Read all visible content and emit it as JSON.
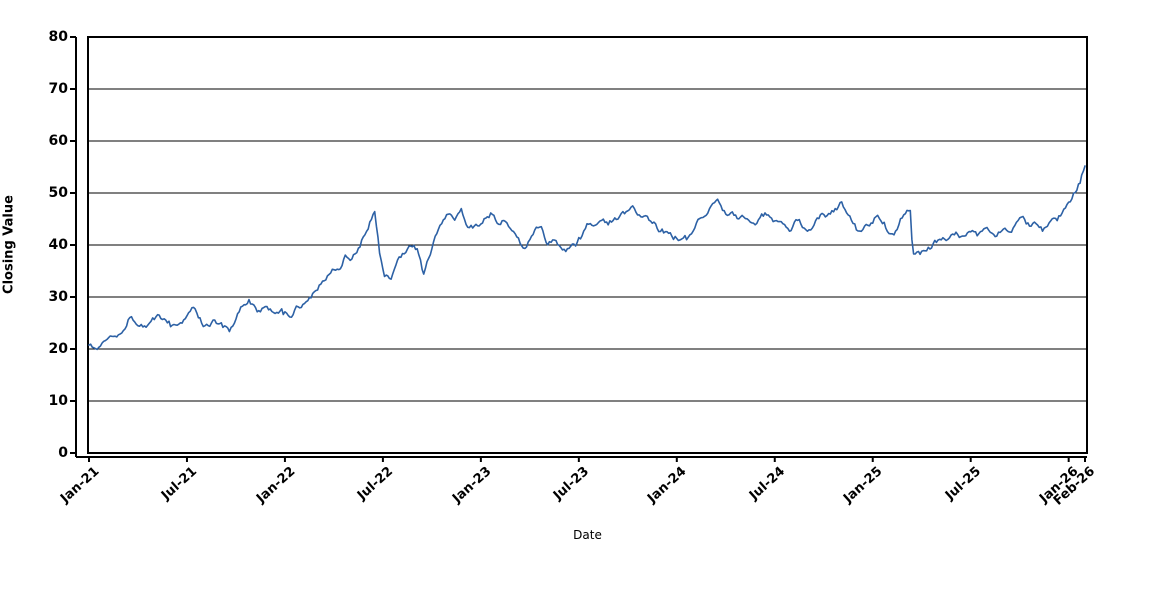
{
  "chart_data": {
    "type": "line",
    "title": "",
    "xlabel": "Date",
    "ylabel": "Closing Value",
    "legend": "none",
    "grid": "horizontal",
    "ylim": [
      0,
      80
    ],
    "y_ticks": [
      0,
      10,
      20,
      30,
      40,
      50,
      60,
      70,
      80
    ],
    "xlim_months": [
      0,
      61
    ],
    "x_ticks": [
      {
        "month": 0,
        "label": "Jan-21"
      },
      {
        "month": 6,
        "label": "Jul-21"
      },
      {
        "month": 12,
        "label": "Jan-22"
      },
      {
        "month": 18,
        "label": "Jul-22"
      },
      {
        "month": 24,
        "label": "Jan-23"
      },
      {
        "month": 30,
        "label": "Jul-23"
      },
      {
        "month": 36,
        "label": "Jan-24"
      },
      {
        "month": 42,
        "label": "Jul-24"
      },
      {
        "month": 48,
        "label": "Jan-25"
      },
      {
        "month": 54,
        "label": "Jul-25"
      },
      {
        "month": 60,
        "label": "Jan-26"
      },
      {
        "month": 61,
        "label": "Feb-26"
      }
    ],
    "colors": {
      "line": "#2d61a5",
      "grid": "#000000",
      "axis": "#000000",
      "border": "#000000",
      "background": "#ffffff",
      "text": "#000000"
    },
    "series": [
      {
        "name": "Closing Value",
        "anchors_month_value": [
          [
            0,
            21.2
          ],
          [
            0.2,
            20.4
          ],
          [
            0.5,
            19.8
          ],
          [
            1,
            22.0
          ],
          [
            1.6,
            23.2
          ],
          [
            2.2,
            24.9
          ],
          [
            2.6,
            26.7
          ],
          [
            3.1,
            25.2
          ],
          [
            3.7,
            25.4
          ],
          [
            4.3,
            25.8
          ],
          [
            5,
            24.6
          ],
          [
            5.6,
            24.9
          ],
          [
            6,
            26.1
          ],
          [
            6.4,
            27.8
          ],
          [
            7,
            24.3
          ],
          [
            7.6,
            25.4
          ],
          [
            8.1,
            24.1
          ],
          [
            8.6,
            23.3
          ],
          [
            9.3,
            27.3
          ],
          [
            9.8,
            29.0
          ],
          [
            10.3,
            27.0
          ],
          [
            10.9,
            27.7
          ],
          [
            11.4,
            25.9
          ],
          [
            11.8,
            27.4
          ],
          [
            12.2,
            26.2
          ],
          [
            12.6,
            27.4
          ],
          [
            13.3,
            29.8
          ],
          [
            14,
            32.2
          ],
          [
            14.7,
            34.8
          ],
          [
            15.2,
            36.0
          ],
          [
            15.7,
            38.0
          ],
          [
            16,
            37.3
          ],
          [
            16.4,
            39.0
          ],
          [
            16.9,
            41.8
          ],
          [
            17.2,
            44.3
          ],
          [
            17.5,
            46.2
          ],
          [
            17.8,
            38.8
          ],
          [
            18.1,
            34.3
          ],
          [
            18.5,
            33.9
          ],
          [
            18.9,
            36.8
          ],
          [
            19.4,
            38.8
          ],
          [
            19.8,
            40.0
          ],
          [
            20.1,
            39.2
          ],
          [
            20.5,
            33.9
          ],
          [
            20.8,
            37.5
          ],
          [
            21.2,
            41.0
          ],
          [
            21.7,
            45.8
          ],
          [
            22,
            46.6
          ],
          [
            22.4,
            45.0
          ],
          [
            22.8,
            46.3
          ],
          [
            23.2,
            42.4
          ],
          [
            23.6,
            43.6
          ],
          [
            24,
            43.0
          ],
          [
            24.4,
            45.4
          ],
          [
            24.7,
            46.3
          ],
          [
            25.1,
            44.3
          ],
          [
            25.5,
            44.8
          ],
          [
            26,
            42.6
          ],
          [
            26.6,
            38.5
          ],
          [
            27.2,
            41.0
          ],
          [
            27.7,
            43.6
          ],
          [
            28.1,
            40.6
          ],
          [
            28.6,
            41.6
          ],
          [
            29,
            39.7
          ],
          [
            29.4,
            38.9
          ],
          [
            29.7,
            40.2
          ],
          [
            30,
            41.2
          ],
          [
            30.5,
            43.0
          ],
          [
            31,
            44.0
          ],
          [
            31.6,
            44.6
          ],
          [
            32.4,
            45.2
          ],
          [
            33.3,
            46.3
          ],
          [
            33.8,
            44.6
          ],
          [
            34.3,
            45.0
          ],
          [
            34.9,
            43.1
          ],
          [
            35.3,
            42.6
          ],
          [
            36,
            41.3
          ],
          [
            36.6,
            40.7
          ],
          [
            37,
            41.9
          ],
          [
            37.5,
            44.0
          ],
          [
            38,
            46.5
          ],
          [
            38.5,
            48.8
          ],
          [
            38.8,
            48.0
          ],
          [
            39.2,
            46.2
          ],
          [
            39.4,
            47.2
          ],
          [
            39.9,
            45.6
          ],
          [
            40.4,
            44.6
          ],
          [
            40.9,
            43.9
          ],
          [
            41.4,
            45.3
          ],
          [
            42,
            44.9
          ],
          [
            42.5,
            44.0
          ],
          [
            42.9,
            42.9
          ],
          [
            43.4,
            44.6
          ],
          [
            44,
            41.7
          ],
          [
            44.5,
            44.5
          ],
          [
            44.9,
            46.3
          ],
          [
            45.3,
            45.2
          ],
          [
            45.8,
            46.8
          ],
          [
            46.1,
            48.4
          ],
          [
            46.6,
            45.0
          ],
          [
            47.1,
            41.9
          ],
          [
            47.6,
            44.0
          ],
          [
            48,
            45.3
          ],
          [
            48.3,
            46.8
          ],
          [
            48.9,
            44.0
          ],
          [
            49.3,
            43.4
          ],
          [
            49.8,
            46.0
          ],
          [
            50.3,
            46.7
          ],
          [
            50.45,
            38.4
          ],
          [
            50.8,
            39.2
          ],
          [
            51.2,
            38.8
          ],
          [
            51.8,
            40.5
          ],
          [
            52.3,
            41.0
          ],
          [
            52.8,
            42.5
          ],
          [
            53.3,
            41.4
          ],
          [
            54,
            42.8
          ],
          [
            54.5,
            42.2
          ],
          [
            55,
            43.6
          ],
          [
            55.5,
            42.8
          ],
          [
            56,
            43.8
          ],
          [
            56.5,
            42.8
          ],
          [
            57,
            44.2
          ],
          [
            57.5,
            43.4
          ],
          [
            58,
            44.8
          ],
          [
            58.4,
            43.6
          ],
          [
            58.9,
            45.3
          ],
          [
            59.3,
            44.6
          ],
          [
            59.8,
            46.5
          ],
          [
            60.1,
            48.0
          ],
          [
            60.4,
            50.5
          ],
          [
            60.7,
            52.2
          ],
          [
            60.9,
            54.0
          ],
          [
            61,
            55.2
          ]
        ]
      }
    ],
    "noise": {
      "seed": 1337,
      "step": 0.1,
      "amp": 1.1,
      "decay": 0.78,
      "jitter": 0.35
    }
  }
}
